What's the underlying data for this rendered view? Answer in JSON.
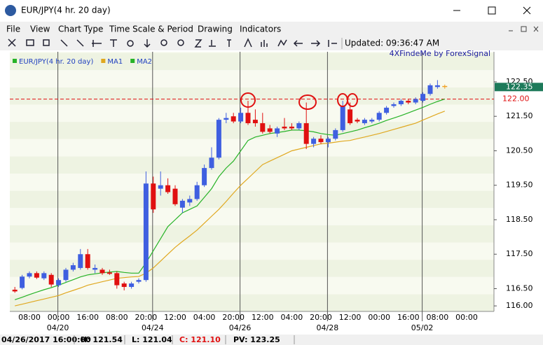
{
  "window": {
    "title": "EUR/JPY(4 hr.  20 day)"
  },
  "menu": [
    "File",
    "View",
    "Chart Type",
    "Time Scale & Period",
    "Drawing",
    "Indicators"
  ],
  "toolbar": {
    "updated": "Updated: 09:36:47 AM"
  },
  "status_bar": [
    "04/26/2017 16:00:00",
    "H: 121.54",
    "L: 121.04",
    "C: 121.10",
    "PV: 123.25"
  ],
  "chart_data": {
    "type": "candlestick",
    "watermark": "4XFindeMe by ForexSignal",
    "categories": [
      null,
      null,
      "08:00",
      null,
      null,
      null,
      "00:00",
      null,
      null,
      null,
      "16:00",
      null,
      null,
      null,
      "08:00",
      null,
      null,
      null,
      "20:00",
      null,
      null,
      null,
      "12:00",
      null,
      null,
      null,
      "04:00",
      null,
      null,
      null,
      "20:00",
      null,
      null,
      null,
      "12:00",
      null,
      null,
      null,
      "04:00",
      null,
      null,
      null,
      "20:00",
      null,
      null,
      null,
      "12:00",
      null,
      null,
      null,
      "00:00",
      null,
      null,
      null,
      "16:00",
      null,
      null,
      null,
      "08:00",
      null,
      null,
      null,
      "00:00"
    ],
    "date_labels": [
      null,
      null,
      null,
      null,
      null,
      null,
      "04/20",
      null,
      null,
      null,
      null,
      null,
      null,
      null,
      null,
      null,
      null,
      null,
      null,
      "04/24",
      null,
      null,
      null,
      null,
      null,
      null,
      null,
      null,
      null,
      null,
      null,
      "04/26",
      null,
      null,
      null,
      null,
      null,
      null,
      null,
      null,
      null,
      null,
      null,
      "04/28",
      null,
      null,
      null,
      null,
      null,
      null,
      null,
      null,
      null,
      null,
      null,
      null,
      "05/02",
      null,
      null,
      null,
      null,
      null,
      null
    ],
    "series": [
      {
        "name": "EUR/JPY(4 hr.  20 day)",
        "color": "#27b327",
        "up_color": "#3f5fe0",
        "down_color": "#e01010",
        "last_color": "#f0a020",
        "open": [
          116.47,
          116.52,
          116.85,
          116.95,
          116.8,
          116.9,
          116.6,
          116.75,
          117.05,
          117.1,
          117.5,
          117.05,
          117.05,
          116.97,
          116.95,
          116.65,
          116.55,
          116.7,
          116.75,
          119.55,
          119.4,
          119.5,
          119.4,
          118.85,
          119.0,
          119.1,
          119.5,
          120.0,
          120.3,
          121.4,
          121.5,
          121.35,
          121.6,
          121.4,
          121.3,
          121.15,
          121.0,
          121.2,
          121.2,
          121.15,
          121.3,
          120.7,
          120.85,
          120.75,
          120.85,
          121.1,
          121.7,
          121.4,
          121.3,
          121.35,
          121.4,
          121.6,
          121.8,
          121.85,
          121.95,
          121.9,
          121.95,
          122.15,
          122.35,
          122.35,
          null,
          null,
          null
        ],
        "high": [
          116.55,
          116.9,
          117.0,
          117.0,
          117.0,
          116.95,
          116.8,
          117.1,
          117.25,
          117.65,
          117.65,
          117.2,
          117.1,
          117.05,
          117.0,
          116.7,
          116.7,
          116.8,
          119.9,
          119.75,
          119.9,
          119.7,
          119.5,
          119.1,
          119.2,
          119.6,
          120.1,
          120.6,
          121.45,
          121.6,
          121.6,
          121.75,
          121.95,
          121.7,
          121.6,
          121.25,
          121.2,
          121.45,
          121.3,
          121.35,
          121.9,
          120.9,
          120.95,
          120.9,
          121.15,
          121.95,
          121.9,
          121.45,
          121.45,
          121.45,
          121.65,
          121.8,
          121.9,
          122.0,
          122.0,
          122.05,
          122.2,
          122.45,
          122.55,
          122.42,
          null,
          null,
          null
        ],
        "low": [
          116.38,
          116.48,
          116.8,
          116.78,
          116.75,
          116.55,
          116.55,
          116.7,
          117.0,
          117.05,
          117.05,
          116.95,
          116.9,
          116.9,
          116.5,
          116.45,
          116.5,
          116.65,
          116.7,
          118.7,
          119.2,
          119.25,
          118.9,
          118.7,
          118.9,
          119.05,
          119.45,
          119.95,
          120.25,
          121.3,
          121.3,
          121.3,
          121.25,
          121.2,
          121.0,
          121.0,
          120.9,
          121.1,
          121.1,
          121.1,
          120.55,
          120.6,
          120.7,
          120.6,
          120.8,
          121.05,
          121.25,
          121.3,
          121.25,
          121.3,
          121.35,
          121.55,
          121.75,
          121.8,
          121.85,
          121.85,
          121.9,
          122.1,
          122.3,
          122.3,
          null,
          null,
          null
        ],
        "close": [
          116.42,
          116.85,
          116.95,
          116.82,
          116.95,
          116.62,
          116.75,
          117.05,
          117.18,
          117.5,
          117.1,
          117.1,
          116.95,
          116.93,
          116.6,
          116.55,
          116.65,
          116.75,
          119.55,
          118.8,
          119.5,
          119.3,
          118.95,
          119.05,
          119.1,
          119.5,
          120.0,
          120.3,
          121.4,
          121.45,
          121.35,
          121.6,
          121.3,
          121.3,
          121.05,
          121.05,
          121.15,
          121.15,
          121.15,
          121.3,
          120.7,
          120.85,
          120.75,
          120.85,
          121.1,
          121.8,
          121.3,
          121.35,
          121.4,
          121.4,
          121.6,
          121.75,
          121.85,
          121.95,
          121.9,
          122.0,
          122.15,
          122.4,
          122.4,
          122.38,
          null,
          null,
          null
        ]
      },
      {
        "name": "MA1",
        "color": "#e0a820",
        "values": [
          116.0,
          116.05,
          116.1,
          116.15,
          116.2,
          116.25,
          116.3,
          116.38,
          116.45,
          116.52,
          116.6,
          116.65,
          116.7,
          116.75,
          116.8,
          116.82,
          116.84,
          116.85,
          116.95,
          117.1,
          117.3,
          117.5,
          117.7,
          117.87,
          118.03,
          118.2,
          118.4,
          118.6,
          118.8,
          119.03,
          119.27,
          119.5,
          119.7,
          119.9,
          120.1,
          120.2,
          120.3,
          120.4,
          120.5,
          120.55,
          120.6,
          120.65,
          120.7,
          120.72,
          120.75,
          120.78,
          120.8,
          120.85,
          120.9,
          120.95,
          121.0,
          121.06,
          121.12,
          121.18,
          121.24,
          121.3,
          121.39,
          121.48,
          121.57,
          121.65,
          null,
          null,
          null
        ]
      },
      {
        "name": "MA2",
        "color": "#27b327",
        "values": [
          116.18,
          116.25,
          116.33,
          116.4,
          116.47,
          116.53,
          116.6,
          116.68,
          116.76,
          116.84,
          116.9,
          116.93,
          116.96,
          116.98,
          117.0,
          116.97,
          116.95,
          116.95,
          117.25,
          117.6,
          117.95,
          118.3,
          118.5,
          118.7,
          118.8,
          118.9,
          119.15,
          119.4,
          119.75,
          120.0,
          120.2,
          120.5,
          120.8,
          120.9,
          120.95,
          121.0,
          121.03,
          121.06,
          121.1,
          121.1,
          121.08,
          121.05,
          121.0,
          120.97,
          120.95,
          121.0,
          121.05,
          121.1,
          121.17,
          121.23,
          121.3,
          121.38,
          121.45,
          121.52,
          121.6,
          121.68,
          121.76,
          121.85,
          121.93,
          122.0,
          null,
          null,
          null
        ]
      }
    ],
    "ylim": [
      115.84,
      123.25
    ],
    "yticks": [
      {
        "value": 122.5,
        "label": "122.50"
      },
      {
        "value": 121.5,
        "label": "121.50"
      },
      {
        "value": 120.5,
        "label": "120.50"
      },
      {
        "value": 119.5,
        "label": "119.50"
      },
      {
        "value": 118.5,
        "label": "118.50"
      },
      {
        "value": 117.5,
        "label": "117.50"
      },
      {
        "value": 116.5,
        "label": "116.50"
      },
      {
        "value": 116.0,
        "label": "116.00"
      }
    ],
    "hline": {
      "value": 122.0,
      "label": "122.00",
      "color": "#e01010"
    },
    "last_price": {
      "value": 122.35,
      "label": "122.35",
      "color": "#1d7a5a"
    }
  }
}
